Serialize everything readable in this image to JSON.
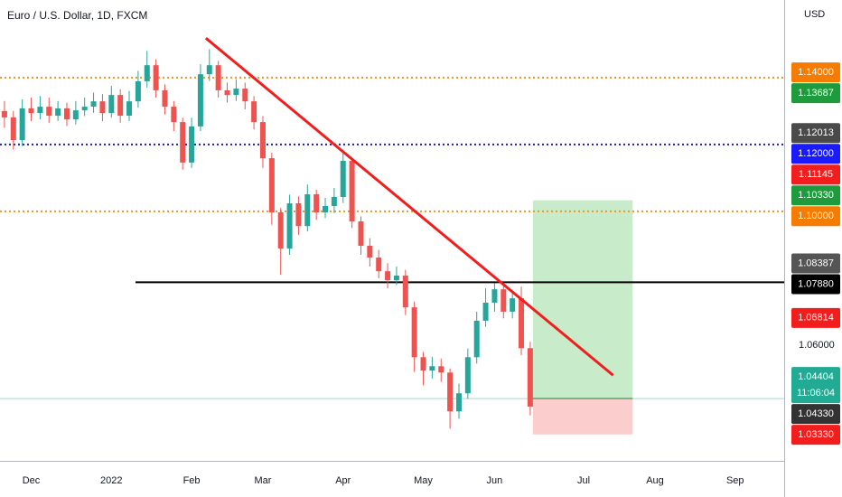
{
  "chart_data": {
    "type": "candlestick",
    "title": "Euro / U.S. Dollar, 1D, FXCM",
    "currency": "USD",
    "categories": [
      null,
      null,
      null,
      "Dec",
      null,
      null,
      null,
      null,
      null,
      null,
      null,
      null,
      "2022",
      null,
      null,
      null,
      null,
      null,
      null,
      null,
      null,
      "Feb",
      null,
      null,
      null,
      null,
      null,
      null,
      null,
      "Mar",
      null,
      null,
      null,
      null,
      null,
      null,
      null,
      null,
      "Apr",
      null,
      null,
      null,
      null,
      null,
      null,
      null,
      null,
      "May",
      null,
      null,
      null,
      null,
      null,
      null,
      null,
      "Jun",
      null,
      null,
      null,
      null,
      null,
      null,
      null,
      null,
      null,
      "Jul",
      null,
      null,
      null,
      null,
      null,
      null,
      null,
      "Aug",
      null,
      null,
      null,
      null,
      null,
      null,
      null,
      null,
      "Sep",
      null,
      null,
      null,
      null,
      null
    ],
    "open": [
      1.13,
      1.1281,
      1.1213,
      1.1308,
      1.1294,
      1.1313,
      1.1286,
      1.1308,
      1.1275,
      1.1302,
      1.1313,
      1.1329,
      1.1294,
      1.1348,
      1.1286,
      1.1329,
      1.1389,
      1.1437,
      1.1362,
      1.1313,
      1.1267,
      1.1146,
      1.1254,
      1.141,
      1.1437,
      1.1362,
      1.1348,
      1.1367,
      1.1329,
      1.1267,
      1.1159,
      1.0997,
      1.0889,
      1.1024,
      1.0956,
      1.1051,
      1.0997,
      1.1016,
      1.1043,
      1.1151,
      1.097,
      1.0897,
      1.0862,
      1.0821,
      1.0794,
      1.0808,
      1.0713,
      1.0564,
      1.0524,
      1.0537,
      1.0518,
      1.0402,
      1.0456,
      1.0564,
      1.0673,
      1.0727,
      1.0767,
      1.07,
      1.074,
      1.0591,
      null,
      null,
      null,
      null,
      null,
      null,
      null,
      null,
      null,
      null,
      null,
      null,
      null,
      null,
      null,
      null,
      null,
      null,
      null,
      null,
      null,
      null,
      null,
      null,
      null,
      null,
      null,
      null
    ],
    "high": [
      1.133,
      1.13,
      1.1335,
      1.134,
      1.1345,
      1.134,
      1.133,
      1.1325,
      1.133,
      1.134,
      1.1355,
      1.135,
      1.1375,
      1.1365,
      1.136,
      1.142,
      1.148,
      1.1455,
      1.138,
      1.133,
      1.128,
      1.128,
      1.144,
      1.1485,
      1.145,
      1.1385,
      1.1395,
      1.1385,
      1.1345,
      1.1285,
      1.1175,
      1.101,
      1.105,
      1.1045,
      1.108,
      1.1065,
      1.104,
      1.107,
      1.1185,
      1.116,
      1.0985,
      1.092,
      1.0885,
      1.0845,
      1.0835,
      1.0825,
      1.073,
      1.058,
      1.0565,
      1.056,
      1.053,
      1.0485,
      1.059,
      1.07,
      1.077,
      1.0785,
      1.0785,
      1.0765,
      1.0775,
      1.061,
      null,
      null,
      null,
      null,
      null,
      null,
      null,
      null,
      null,
      null,
      null,
      null,
      null,
      null,
      null,
      null,
      null,
      null,
      null,
      null,
      null,
      null,
      null,
      null,
      null,
      null,
      null,
      null
    ],
    "low": [
      1.125,
      1.1185,
      1.1195,
      1.127,
      1.1275,
      1.1265,
      1.127,
      1.1255,
      1.126,
      1.1285,
      1.1295,
      1.127,
      1.128,
      1.1265,
      1.127,
      1.131,
      1.137,
      1.134,
      1.129,
      1.124,
      1.1125,
      1.113,
      1.124,
      1.139,
      1.134,
      1.1325,
      1.133,
      1.1305,
      1.1245,
      1.113,
      1.096,
      1.081,
      1.087,
      1.093,
      1.094,
      1.0975,
      1.098,
      1.0995,
      1.1025,
      1.095,
      1.087,
      1.0835,
      1.08,
      1.077,
      1.078,
      1.069,
      1.052,
      1.048,
      1.05,
      1.049,
      1.035,
      1.038,
      1.044,
      1.0545,
      1.0655,
      1.07,
      1.068,
      1.068,
      1.057,
      1.039,
      null,
      null,
      null,
      null,
      null,
      null,
      null,
      null,
      null,
      null,
      null,
      null,
      null,
      null,
      null,
      null,
      null,
      null,
      null,
      null,
      null,
      null,
      null,
      null,
      null,
      null,
      null,
      null
    ],
    "close": [
      1.1281,
      1.1213,
      1.1308,
      1.1294,
      1.1313,
      1.1286,
      1.1308,
      1.1275,
      1.1302,
      1.1313,
      1.1329,
      1.1294,
      1.1348,
      1.1286,
      1.1329,
      1.1389,
      1.1437,
      1.1362,
      1.1313,
      1.1267,
      1.1146,
      1.1254,
      1.141,
      1.1437,
      1.1362,
      1.1348,
      1.1367,
      1.1329,
      1.1267,
      1.1159,
      1.0997,
      1.0889,
      1.1024,
      1.0956,
      1.1051,
      1.0997,
      1.1016,
      1.1043,
      1.1151,
      1.097,
      1.0897,
      1.0862,
      1.0821,
      1.0794,
      1.0808,
      1.0713,
      1.0564,
      1.0524,
      1.0537,
      1.0518,
      1.0402,
      1.0456,
      1.0564,
      1.0673,
      1.0727,
      1.0767,
      1.07,
      1.074,
      1.0591,
      1.0416,
      null,
      null,
      null,
      null,
      null,
      null,
      null,
      null,
      null,
      null,
      null,
      null,
      null,
      null,
      null,
      null,
      null,
      null,
      null,
      null,
      null,
      null,
      null,
      null,
      null,
      null,
      null,
      null
    ],
    "up_color": "#26a69a",
    "down_color": "#ef5350",
    "ylim": [
      1.0254,
      1.1632
    ],
    "yticks": [
      {
        "value": 1.06,
        "label": "1.06000"
      }
    ],
    "levels": [
      {
        "value": 1.14,
        "color": "#f7931a",
        "dash": "dotted"
      },
      {
        "value": 1.12,
        "color": "#1a1acc",
        "dash": "dotted"
      },
      {
        "value": 1.1,
        "color": "#f7931a",
        "dash": "dotted"
      },
      {
        "value": 1.0788,
        "color": "#000000",
        "dash": "solid",
        "from": 14.7
      }
    ],
    "trendline": {
      "points": [
        [
          22.6,
          1.1518
        ],
        [
          68.3,
          1.051
        ]
      ],
      "color": "#f21d1d"
    },
    "position": {
      "entry": 1.04404,
      "target": 1.1033,
      "stop": 1.0333,
      "from": 59.3,
      "to": 70.5
    },
    "current_price": {
      "value": 1.04404,
      "label": "1.04404",
      "countdown": "11:06:04",
      "color": "#22ab94"
    },
    "price_labels": [
      {
        "value": 1.14,
        "label": "1.14000",
        "color": "#f57c00"
      },
      {
        "value": 1.13687,
        "label": "1.13687",
        "color": "#1e9b3d"
      },
      {
        "value": 1.12013,
        "label": "1.12013",
        "color": "#4a4a4a"
      },
      {
        "value": 1.12,
        "label": "1.12000",
        "color": "#1a1aff"
      },
      {
        "value": 1.11145,
        "label": "1.11145",
        "color": "#f21d1d"
      },
      {
        "value": 1.1033,
        "label": "1.10330",
        "color": "#1e9b3d"
      },
      {
        "value": 1.1,
        "label": "1.10000",
        "color": "#f57c00"
      },
      {
        "value": 1.08387,
        "label": "1.08387",
        "color": "#555555"
      },
      {
        "value": 1.0788,
        "label": "1.07880",
        "color": "#000000"
      },
      {
        "value": 1.06814,
        "label": "1.06814",
        "color": "#f21d1d"
      },
      {
        "value": 1.0433,
        "label": "1.04330",
        "color": "#333333"
      },
      {
        "value": 1.0333,
        "label": "1.03330",
        "color": "#f21d1d"
      }
    ]
  }
}
